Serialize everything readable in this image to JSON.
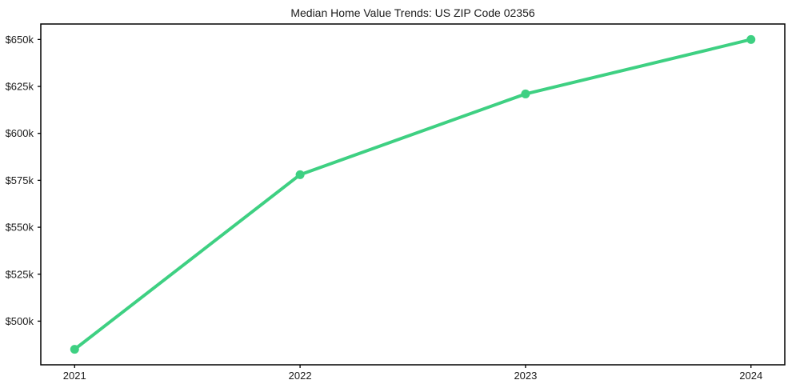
{
  "chart_data": {
    "type": "line",
    "title": "Median Home Value Trends: US ZIP Code 02356",
    "x": [
      2021,
      2022,
      2023,
      2024
    ],
    "x_tick_labels": [
      "2021",
      "2022",
      "2023",
      "2024"
    ],
    "values": [
      485000,
      578000,
      621000,
      650000
    ],
    "y_ticks": [
      500000,
      525000,
      550000,
      575000,
      600000,
      625000,
      650000
    ],
    "y_tick_labels": [
      "$500k",
      "$525k",
      "$550k",
      "$575k",
      "$600k",
      "$625k",
      "$650k"
    ],
    "xlim": [
      2020.85,
      2024.15
    ],
    "ylim": [
      476750,
      658250
    ],
    "grid": false,
    "legend": "none",
    "background_color": "#ffffff",
    "line_color": "#3ed082",
    "axis_color": "#000000",
    "text_color": "#1a1a1a",
    "line_width": 4,
    "marker": "circle",
    "marker_radius": 5.5,
    "tick_font_size": 13,
    "tick_length": 4
  }
}
